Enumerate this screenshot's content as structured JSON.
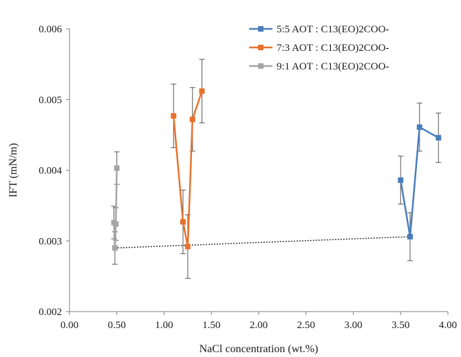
{
  "chart_data": {
    "type": "line",
    "title": "",
    "xlabel": "NaCl concentration (wt.%)",
    "ylabel": "IFT (mN/m)",
    "xlim": [
      0,
      4
    ],
    "ylim": [
      0.002,
      0.006
    ],
    "x_ticks": [
      "0.00",
      "0.50",
      "1.00",
      "1.50",
      "2.00",
      "2.50",
      "3.00",
      "3.50",
      "4.00"
    ],
    "y_ticks": [
      "0.002",
      "0.003",
      "0.004",
      "0.005",
      "0.006"
    ],
    "grid": false,
    "legend_position": "top-right",
    "series": [
      {
        "name": "5:5 AOT : C13(EO)2COO-",
        "color": "#4a7ebb",
        "points": [
          {
            "x": 3.5,
            "y": 0.00386,
            "err": 0.00034
          },
          {
            "x": 3.6,
            "y": 0.00306,
            "err": 0.00034
          },
          {
            "x": 3.7,
            "y": 0.00461,
            "err": 0.00034
          },
          {
            "x": 3.9,
            "y": 0.00446,
            "err": 0.00035
          }
        ]
      },
      {
        "name": "7:3 AOT : C13(EO)2COO-",
        "color": "#e8722c",
        "points": [
          {
            "x": 1.1,
            "y": 0.00477,
            "err": 0.00045
          },
          {
            "x": 1.2,
            "y": 0.00327,
            "err": 0.00045
          },
          {
            "x": 1.25,
            "y": 0.00292,
            "err": 0.00045
          },
          {
            "x": 1.3,
            "y": 0.00472,
            "err": 0.00045
          },
          {
            "x": 1.4,
            "y": 0.00512,
            "err": 0.00045
          }
        ]
      },
      {
        "name": "9:1 AOT : C13(EO)2COO-",
        "color": "#a5a5a5",
        "points": [
          {
            "x": 0.47,
            "y": 0.00326,
            "err": 0.00023
          },
          {
            "x": 0.48,
            "y": 0.0029,
            "err": 0.00023
          },
          {
            "x": 0.49,
            "y": 0.00324,
            "err": 0.00023
          },
          {
            "x": 0.5,
            "y": 0.00403,
            "err": 0.00023
          }
        ]
      }
    ],
    "trendline": {
      "style": "dotted",
      "color": "#333333",
      "points": [
        {
          "x": 0.48,
          "y": 0.0029
        },
        {
          "x": 3.6,
          "y": 0.00306
        }
      ]
    }
  }
}
